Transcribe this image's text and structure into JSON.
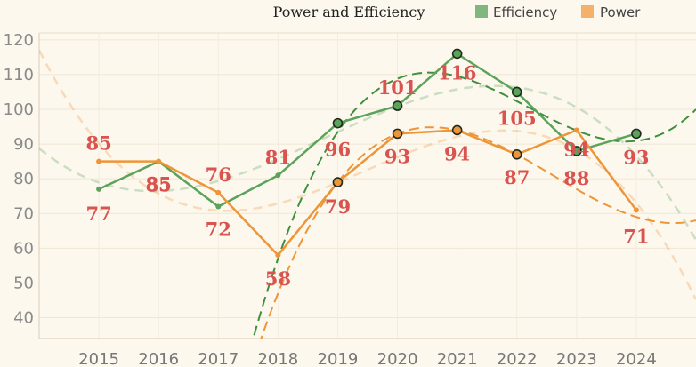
{
  "chart_data": {
    "type": "line",
    "title": "Power and Efficiency",
    "xlabel": "",
    "ylabel": "",
    "categories": [
      "2015",
      "2016",
      "2017",
      "2018",
      "2019",
      "2020",
      "2021",
      "2022",
      "2023",
      "2024"
    ],
    "y_ticks": [
      40,
      50,
      60,
      70,
      80,
      90,
      100,
      110,
      120
    ],
    "ylim": [
      34,
      122
    ],
    "xlim": [
      2014.0,
      2025.0
    ],
    "grid": true,
    "legend_position": "top-right",
    "series": [
      {
        "name": "Efficiency",
        "color": "#5ba35b",
        "trend_color": "#3f8f3f",
        "values": [
          77,
          85,
          72,
          81,
          96,
          101,
          116,
          105,
          88,
          93
        ],
        "labels": [
          "77",
          "85",
          "72",
          "81",
          "96",
          "101",
          "116",
          "105",
          "88",
          "93"
        ],
        "highlighted_points": [
          4,
          5,
          6,
          7,
          8,
          9
        ]
      },
      {
        "name": "Power",
        "color": "#ee9538",
        "trend_color": "#ee9538",
        "values": [
          85,
          85,
          76,
          58,
          79,
          93,
          94,
          87,
          94,
          71
        ],
        "labels": [
          "85",
          "85",
          "76",
          "58",
          "79",
          "93",
          "94",
          "87",
          "94",
          "71"
        ],
        "highlighted_points": [
          4,
          5,
          6,
          7
        ]
      }
    ]
  }
}
